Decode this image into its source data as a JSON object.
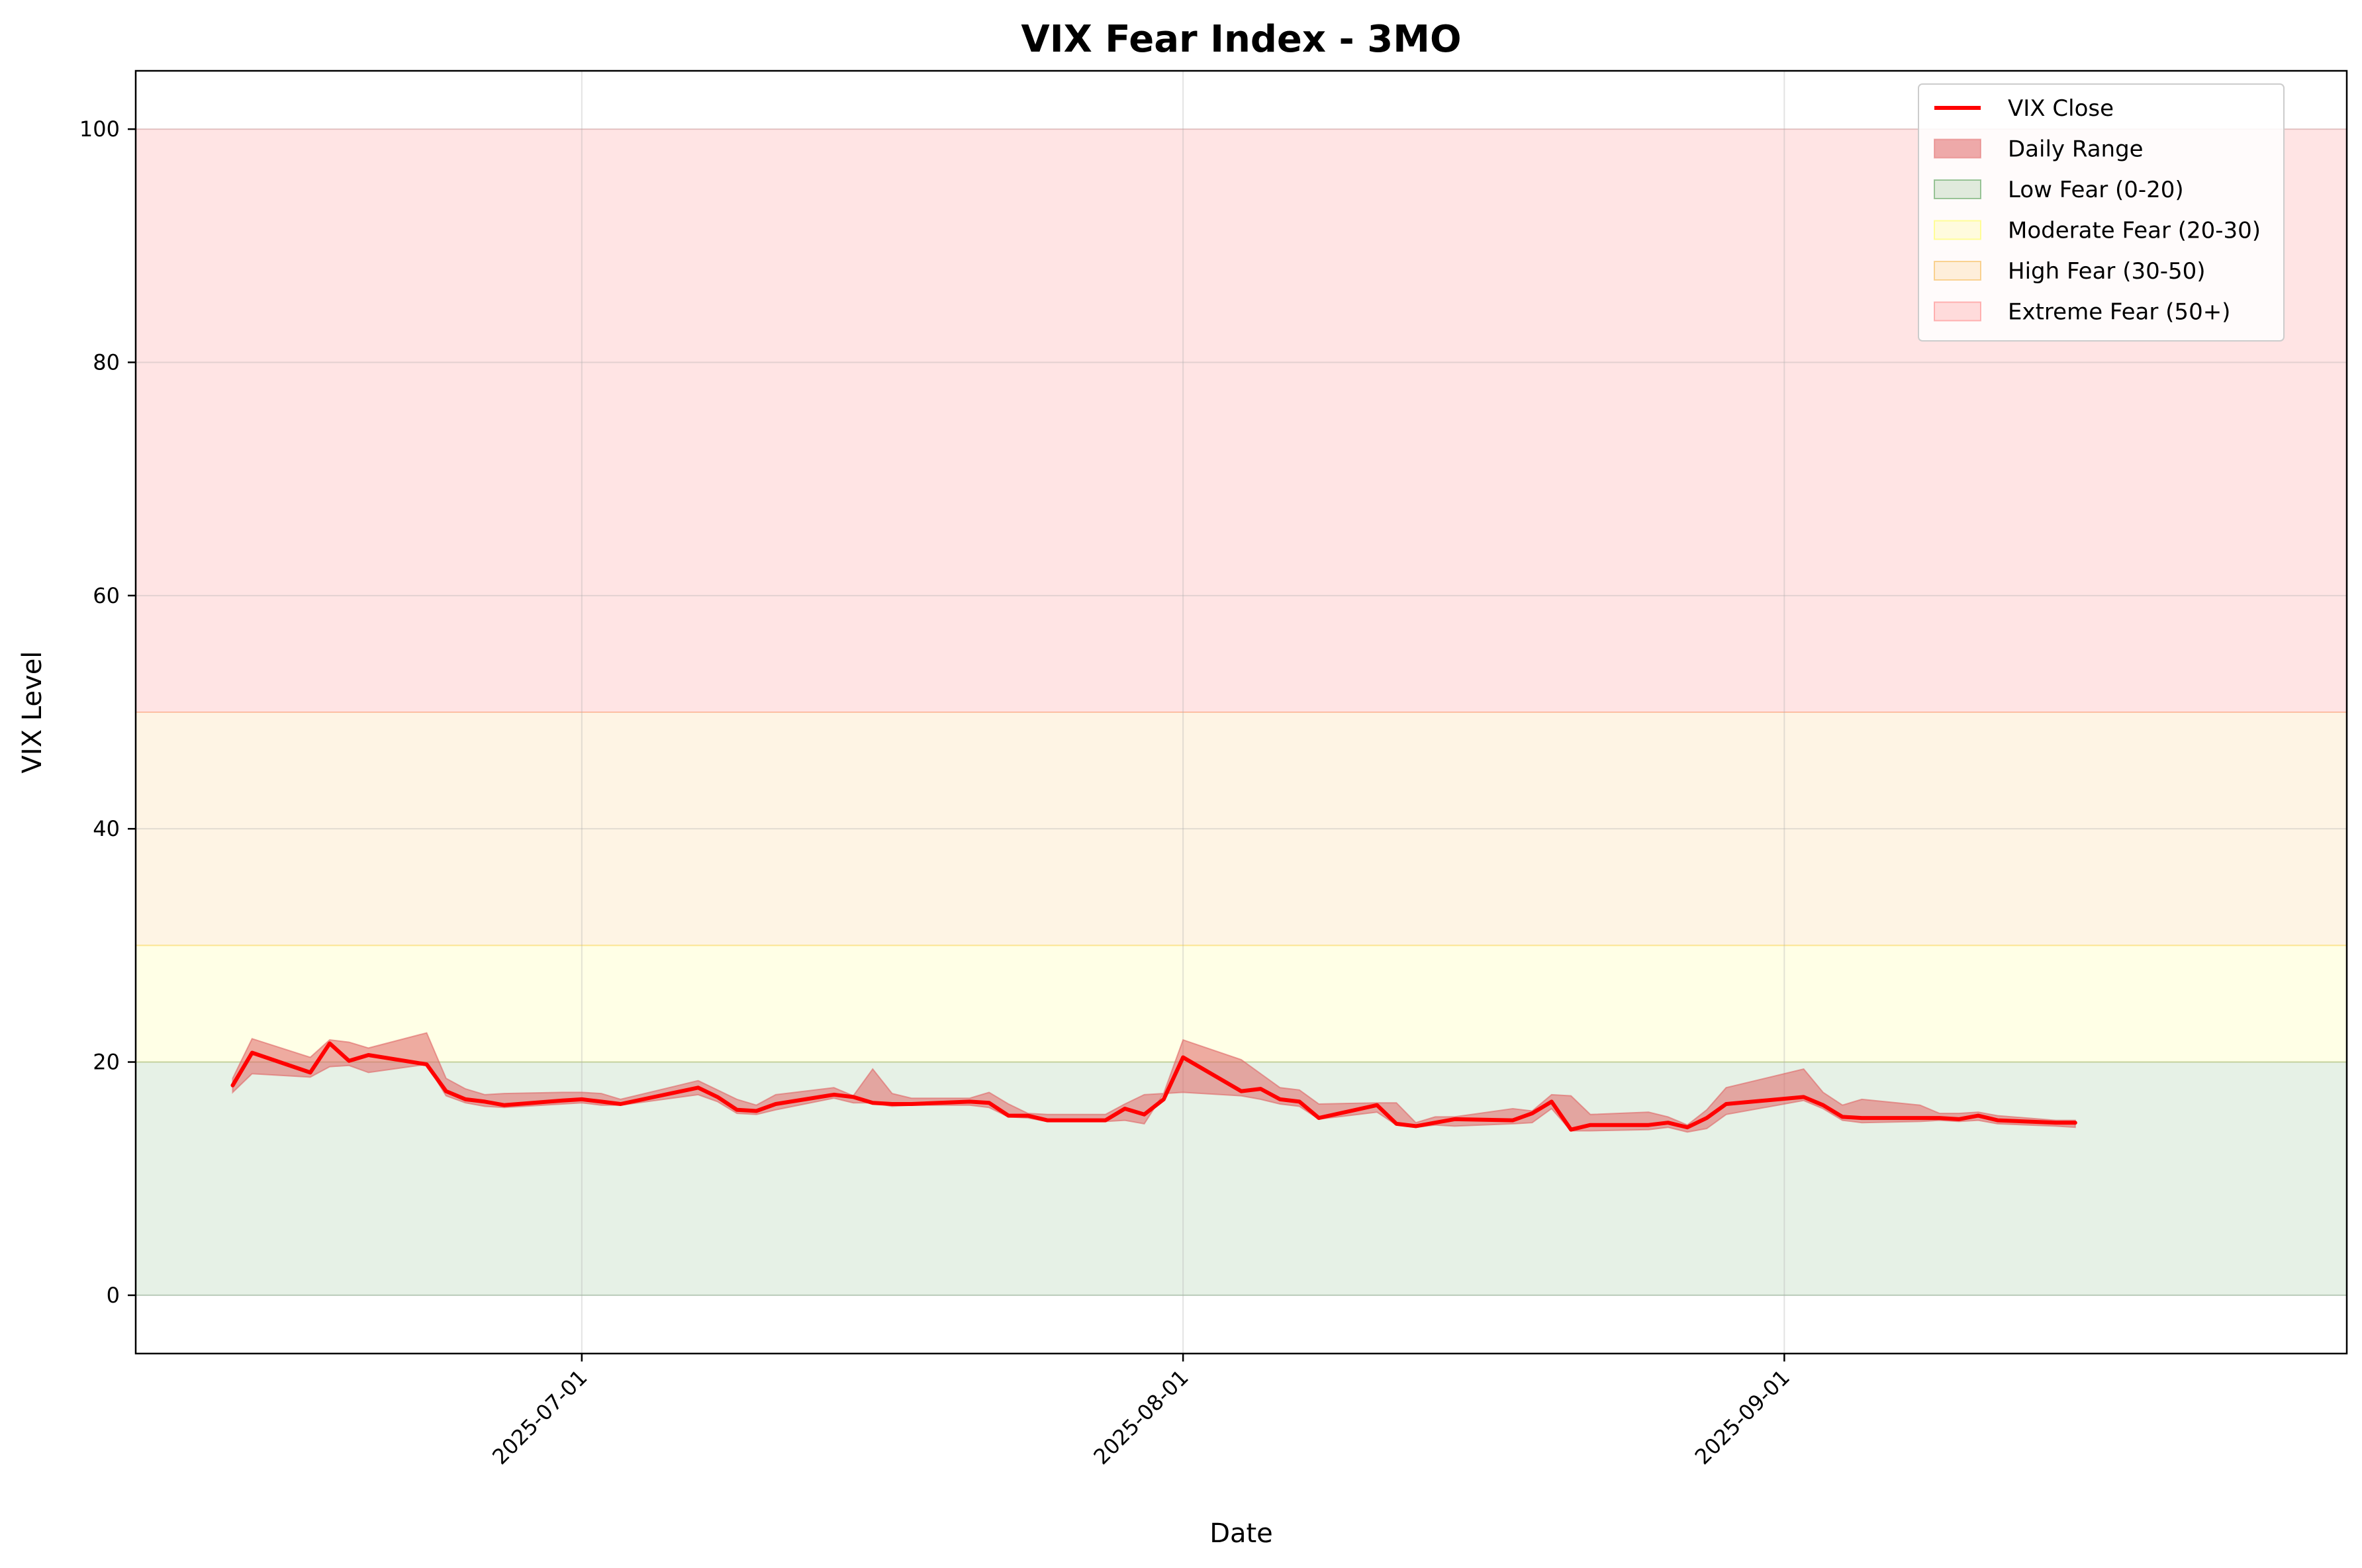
{
  "chart_data": {
    "type": "line",
    "title": "VIX Fear Index - 3MO",
    "xlabel": "Date",
    "ylabel": "VIX Level",
    "xlim": [
      "2025-06-08",
      "2025-09-30"
    ],
    "ylim": [
      -5,
      105
    ],
    "x_ticks": [
      "2025-07-01",
      "2025-08-01",
      "2025-09-01"
    ],
    "y_ticks": [
      0,
      20,
      40,
      60,
      80,
      100
    ],
    "grid": true,
    "legend_position": "top-right",
    "fear_zones": [
      {
        "name": "Low Fear (0-20)",
        "from": 0,
        "to": 20,
        "color": "#2e8b2e"
      },
      {
        "name": "Moderate Fear (20-30)",
        "from": 20,
        "to": 30,
        "color": "#ffff33"
      },
      {
        "name": "High Fear (30-50)",
        "from": 30,
        "to": 50,
        "color": "#f5a623"
      },
      {
        "name": "Extreme Fear (50+)",
        "from": 50,
        "to": 100,
        "color": "#ff6b6b"
      }
    ],
    "series": [
      {
        "name": "VIX Close",
        "type": "line",
        "color": "#ff0000"
      },
      {
        "name": "Daily Range",
        "type": "band",
        "color": "#e06666"
      }
    ],
    "x": [
      "2025-06-13",
      "2025-06-14",
      "2025-06-17",
      "2025-06-18",
      "2025-06-19",
      "2025-06-20",
      "2025-06-23",
      "2025-06-24",
      "2025-06-25",
      "2025-06-26",
      "2025-06-27",
      "2025-06-30",
      "2025-07-01",
      "2025-07-02",
      "2025-07-03",
      "2025-07-07",
      "2025-07-08",
      "2025-07-09",
      "2025-07-10",
      "2025-07-11",
      "2025-07-14",
      "2025-07-15",
      "2025-07-16",
      "2025-07-17",
      "2025-07-18",
      "2025-07-21",
      "2025-07-22",
      "2025-07-23",
      "2025-07-24",
      "2025-07-25",
      "2025-07-28",
      "2025-07-29",
      "2025-07-30",
      "2025-07-31",
      "2025-08-01",
      "2025-08-04",
      "2025-08-05",
      "2025-08-06",
      "2025-08-07",
      "2025-08-08",
      "2025-08-11",
      "2025-08-12",
      "2025-08-13",
      "2025-08-14",
      "2025-08-15",
      "2025-08-18",
      "2025-08-19",
      "2025-08-20",
      "2025-08-21",
      "2025-08-22",
      "2025-08-25",
      "2025-08-26",
      "2025-08-27",
      "2025-08-28",
      "2025-08-29",
      "2025-09-02",
      "2025-09-03",
      "2025-09-04",
      "2025-09-05",
      "2025-09-08",
      "2025-09-09",
      "2025-09-10",
      "2025-09-11",
      "2025-09-12",
      "2025-09-15",
      "2025-09-16"
    ],
    "close": [
      18.0,
      20.8,
      19.1,
      21.6,
      20.1,
      20.6,
      19.8,
      17.5,
      16.8,
      16.6,
      16.3,
      16.7,
      16.8,
      16.6,
      16.4,
      17.8,
      17.0,
      15.9,
      15.8,
      16.4,
      17.2,
      17.0,
      16.5,
      16.4,
      16.4,
      16.6,
      16.5,
      15.4,
      15.4,
      15.0,
      15.0,
      16.0,
      15.5,
      16.8,
      20.4,
      17.5,
      17.7,
      16.8,
      16.6,
      15.2,
      16.3,
      14.7,
      14.5,
      14.8,
      15.1,
      15.0,
      15.6,
      16.6,
      14.2,
      14.6,
      14.6,
      14.8,
      14.4,
      15.2,
      16.4,
      17.0,
      16.3,
      15.3,
      15.2,
      15.2,
      15.2,
      15.1,
      15.4,
      15.0,
      14.8,
      14.8
    ],
    "high": [
      18.6,
      22.0,
      20.4,
      21.9,
      21.7,
      21.2,
      22.5,
      18.6,
      17.7,
      17.2,
      17.3,
      17.4,
      17.4,
      17.3,
      16.8,
      18.4,
      17.6,
      16.8,
      16.3,
      17.2,
      17.8,
      17.1,
      19.4,
      17.3,
      16.9,
      16.9,
      17.4,
      16.4,
      15.6,
      15.5,
      15.5,
      16.4,
      17.2,
      17.3,
      21.9,
      20.2,
      19.0,
      17.8,
      17.6,
      16.4,
      16.5,
      16.5,
      14.8,
      15.3,
      15.3,
      16.0,
      15.8,
      17.2,
      17.1,
      15.5,
      15.7,
      15.3,
      14.6,
      15.9,
      17.8,
      19.4,
      17.4,
      16.3,
      16.8,
      16.3,
      15.6,
      15.6,
      15.7,
      15.4,
      15.0,
      15.0
    ],
    "low": [
      17.4,
      19.0,
      18.7,
      19.6,
      19.7,
      19.1,
      19.8,
      17.1,
      16.5,
      16.2,
      16.1,
      16.4,
      16.5,
      16.3,
      16.3,
      17.2,
      16.6,
      15.6,
      15.5,
      15.9,
      16.9,
      16.5,
      16.5,
      16.2,
      16.3,
      16.3,
      16.1,
      15.3,
      15.2,
      14.9,
      14.9,
      15.0,
      14.7,
      17.3,
      17.4,
      17.1,
      16.8,
      16.4,
      16.2,
      15.1,
      15.7,
      14.6,
      14.4,
      14.6,
      14.5,
      14.7,
      14.8,
      16.0,
      14.1,
      14.1,
      14.2,
      14.4,
      14.0,
      14.3,
      15.5,
      16.7,
      16.0,
      15.0,
      14.8,
      14.9,
      15.0,
      14.9,
      15.0,
      14.7,
      14.5,
      14.4
    ]
  },
  "legend": {
    "close_label": "VIX Close",
    "range_label": "Daily Range",
    "low_label": "Low Fear (0-20)",
    "moderate_label": "Moderate Fear (20-30)",
    "high_label": "High Fear (30-50)",
    "extreme_label": "Extreme Fear (50+)"
  }
}
